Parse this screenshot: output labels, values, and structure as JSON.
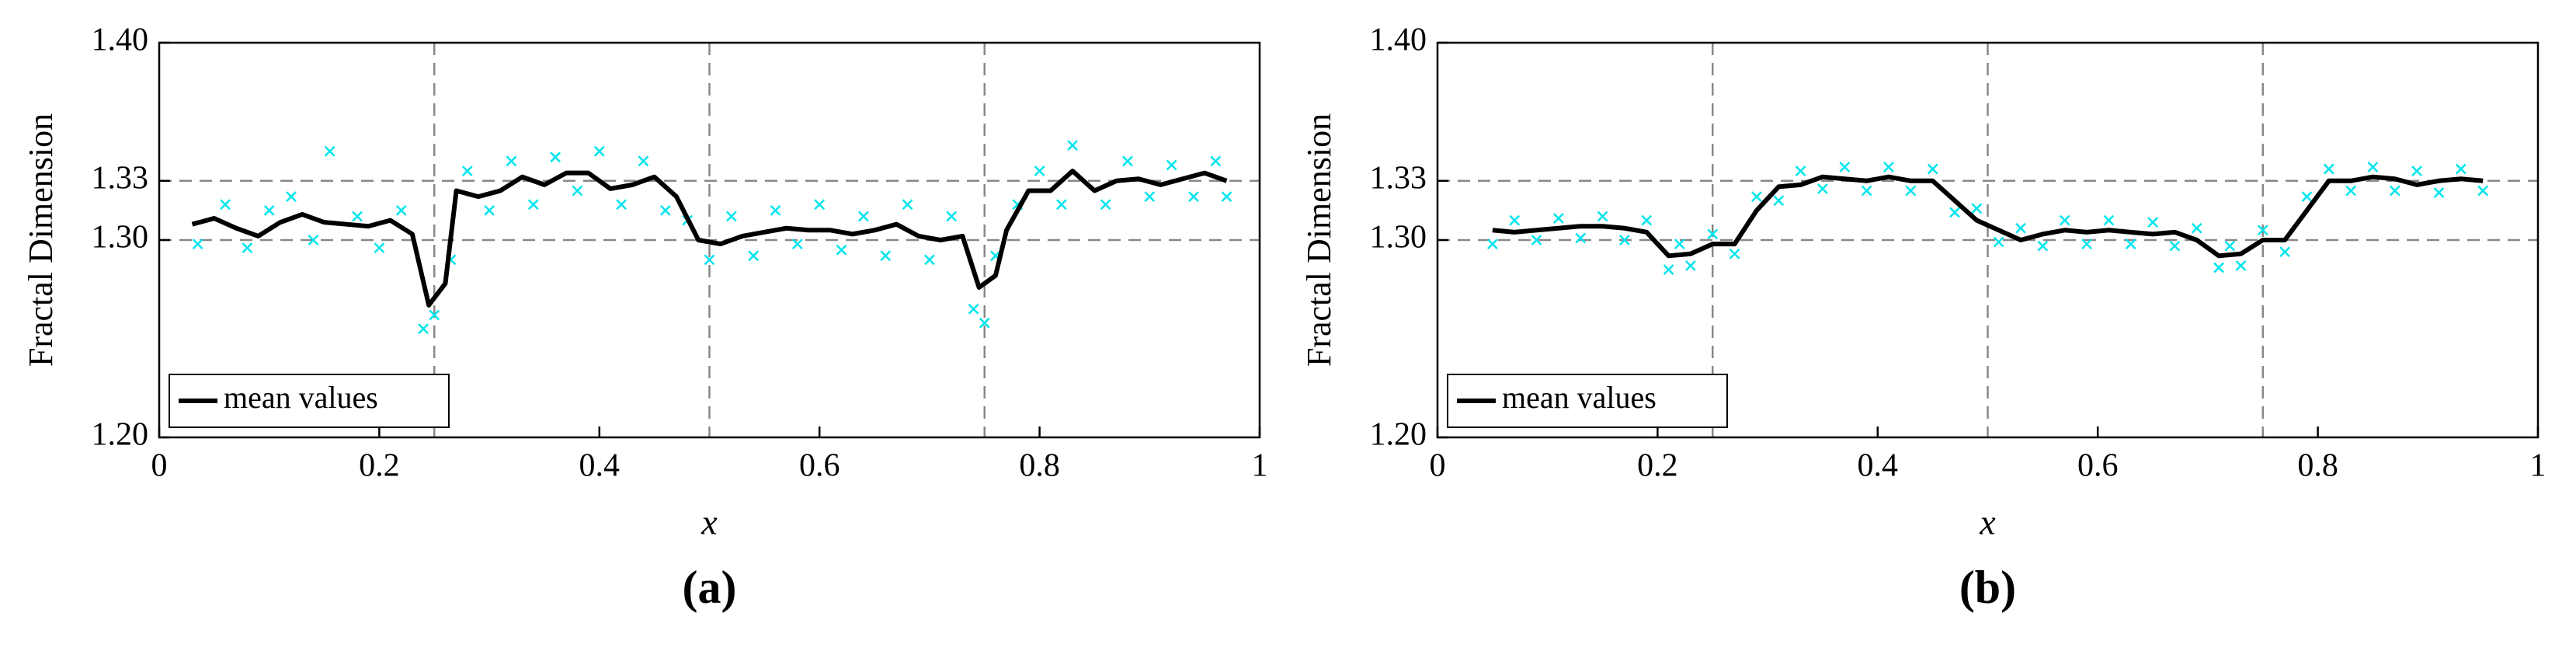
{
  "chart_data": [
    {
      "type": "line",
      "caption": "(a)",
      "xlabel": "x",
      "ylabel": "Fractal Dimension",
      "xlim": [
        0,
        1
      ],
      "ylim": [
        1.2,
        1.4
      ],
      "xticks": [
        0,
        0.2,
        0.4,
        0.6,
        0.8,
        1
      ],
      "yticks": [
        {
          "value": 1.2,
          "label": "1.20"
        },
        {
          "value": 1.3,
          "label": "1.30"
        },
        {
          "value": 1.33,
          "label": "1.33"
        },
        {
          "value": 1.4,
          "label": "1.40"
        }
      ],
      "hlines": [
        1.3,
        1.33
      ],
      "vlines": [
        0.25,
        0.5,
        0.75
      ],
      "legend": "lower left",
      "series": [
        {
          "marker": "x",
          "color": "#00e5ee",
          "x": [
            0.035,
            0.06,
            0.08,
            0.1,
            0.12,
            0.14,
            0.155,
            0.18,
            0.2,
            0.22,
            0.24,
            0.25,
            0.265,
            0.28,
            0.3,
            0.32,
            0.34,
            0.36,
            0.38,
            0.4,
            0.42,
            0.44,
            0.46,
            0.48,
            0.5,
            0.52,
            0.54,
            0.56,
            0.58,
            0.6,
            0.62,
            0.64,
            0.66,
            0.68,
            0.7,
            0.72,
            0.74,
            0.75,
            0.76,
            0.78,
            0.8,
            0.82,
            0.83,
            0.86,
            0.88,
            0.9,
            0.92,
            0.94,
            0.96,
            0.97
          ],
          "values": [
            1.298,
            1.318,
            1.296,
            1.315,
            1.322,
            1.3,
            1.345,
            1.312,
            1.296,
            1.315,
            1.255,
            1.262,
            1.29,
            1.335,
            1.315,
            1.34,
            1.318,
            1.342,
            1.325,
            1.345,
            1.318,
            1.34,
            1.315,
            1.31,
            1.29,
            1.312,
            1.292,
            1.315,
            1.298,
            1.318,
            1.295,
            1.312,
            1.292,
            1.318,
            1.29,
            1.312,
            1.265,
            1.258,
            1.292,
            1.318,
            1.335,
            1.318,
            1.348,
            1.318,
            1.34,
            1.322,
            1.338,
            1.322,
            1.34,
            1.322
          ]
        },
        {
          "name": "mean values",
          "color": "#000000",
          "x": [
            0.03,
            0.05,
            0.07,
            0.09,
            0.11,
            0.13,
            0.15,
            0.17,
            0.19,
            0.21,
            0.23,
            0.245,
            0.26,
            0.27,
            0.29,
            0.31,
            0.33,
            0.35,
            0.37,
            0.39,
            0.41,
            0.43,
            0.45,
            0.47,
            0.49,
            0.51,
            0.53,
            0.55,
            0.57,
            0.59,
            0.61,
            0.63,
            0.65,
            0.67,
            0.69,
            0.71,
            0.73,
            0.745,
            0.76,
            0.77,
            0.79,
            0.81,
            0.83,
            0.85,
            0.87,
            0.89,
            0.91,
            0.93,
            0.95,
            0.97
          ],
          "values": [
            1.308,
            1.311,
            1.306,
            1.302,
            1.309,
            1.313,
            1.309,
            1.308,
            1.307,
            1.31,
            1.303,
            1.267,
            1.278,
            1.325,
            1.322,
            1.325,
            1.332,
            1.328,
            1.334,
            1.334,
            1.326,
            1.328,
            1.332,
            1.322,
            1.3,
            1.298,
            1.302,
            1.304,
            1.306,
            1.305,
            1.305,
            1.303,
            1.305,
            1.308,
            1.302,
            1.3,
            1.302,
            1.276,
            1.282,
            1.305,
            1.325,
            1.325,
            1.335,
            1.325,
            1.33,
            1.331,
            1.328,
            1.331,
            1.334,
            1.33
          ]
        }
      ]
    },
    {
      "type": "line",
      "caption": "(b)",
      "xlabel": "x",
      "ylabel": "Fractal Dimension",
      "xlim": [
        0,
        1
      ],
      "ylim": [
        1.2,
        1.4
      ],
      "xticks": [
        0,
        0.2,
        0.4,
        0.6,
        0.8,
        1
      ],
      "yticks": [
        {
          "value": 1.2,
          "label": "1.20"
        },
        {
          "value": 1.3,
          "label": "1.30"
        },
        {
          "value": 1.33,
          "label": "1.33"
        },
        {
          "value": 1.4,
          "label": "1.40"
        }
      ],
      "hlines": [
        1.3,
        1.33
      ],
      "vlines": [
        0.25,
        0.5,
        0.75
      ],
      "legend": "lower left",
      "series": [
        {
          "marker": "x",
          "color": "#00e5ee",
          "x": [
            0.05,
            0.07,
            0.09,
            0.11,
            0.13,
            0.15,
            0.17,
            0.19,
            0.21,
            0.22,
            0.23,
            0.25,
            0.27,
            0.29,
            0.31,
            0.33,
            0.35,
            0.37,
            0.39,
            0.41,
            0.43,
            0.45,
            0.47,
            0.49,
            0.51,
            0.53,
            0.55,
            0.57,
            0.59,
            0.61,
            0.63,
            0.65,
            0.67,
            0.69,
            0.71,
            0.72,
            0.73,
            0.75,
            0.77,
            0.79,
            0.81,
            0.83,
            0.85,
            0.87,
            0.89,
            0.91,
            0.93,
            0.95
          ],
          "values": [
            1.298,
            1.31,
            1.3,
            1.311,
            1.301,
            1.312,
            1.3,
            1.31,
            1.285,
            1.298,
            1.287,
            1.303,
            1.293,
            1.322,
            1.32,
            1.335,
            1.326,
            1.337,
            1.325,
            1.337,
            1.325,
            1.336,
            1.314,
            1.316,
            1.299,
            1.306,
            1.297,
            1.31,
            1.298,
            1.31,
            1.298,
            1.309,
            1.297,
            1.306,
            1.286,
            1.297,
            1.287,
            1.305,
            1.294,
            1.322,
            1.336,
            1.325,
            1.337,
            1.325,
            1.335,
            1.324,
            1.336,
            1.325
          ]
        },
        {
          "name": "mean values",
          "color": "#000000",
          "x": [
            0.05,
            0.07,
            0.09,
            0.11,
            0.13,
            0.15,
            0.17,
            0.19,
            0.21,
            0.23,
            0.25,
            0.27,
            0.29,
            0.31,
            0.33,
            0.35,
            0.37,
            0.39,
            0.41,
            0.43,
            0.45,
            0.47,
            0.49,
            0.51,
            0.53,
            0.55,
            0.57,
            0.59,
            0.61,
            0.63,
            0.65,
            0.67,
            0.69,
            0.71,
            0.73,
            0.75,
            0.77,
            0.79,
            0.81,
            0.83,
            0.85,
            0.87,
            0.89,
            0.91,
            0.93,
            0.95
          ],
          "values": [
            1.305,
            1.304,
            1.305,
            1.306,
            1.307,
            1.307,
            1.306,
            1.304,
            1.292,
            1.293,
            1.298,
            1.298,
            1.315,
            1.327,
            1.328,
            1.332,
            1.331,
            1.33,
            1.332,
            1.33,
            1.33,
            1.32,
            1.31,
            1.305,
            1.3,
            1.303,
            1.305,
            1.304,
            1.305,
            1.304,
            1.303,
            1.304,
            1.3,
            1.292,
            1.293,
            1.3,
            1.3,
            1.315,
            1.33,
            1.33,
            1.332,
            1.331,
            1.328,
            1.33,
            1.331,
            1.33
          ]
        }
      ]
    }
  ]
}
